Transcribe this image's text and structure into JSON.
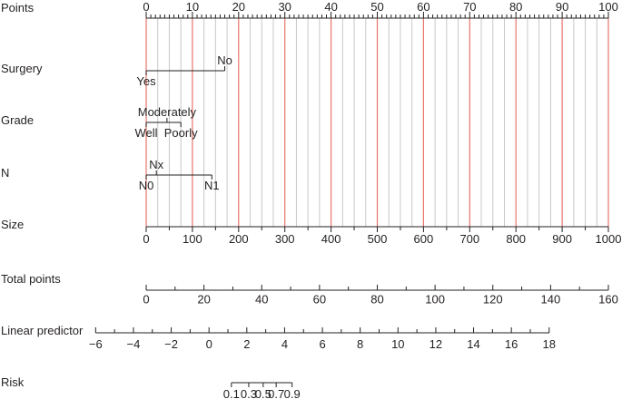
{
  "chart_data": {
    "type": "nomogram",
    "colors": {
      "major_gridline": "#e8756a",
      "minor_gridline": "#c8c8c8",
      "axis": "#231f20"
    },
    "rows": [
      {
        "key": "points",
        "label": "Points",
        "kind": "axis",
        "range": [
          0,
          100
        ],
        "labeled_ticks": [
          0,
          10,
          20,
          30,
          40,
          50,
          60,
          70,
          80,
          90,
          100
        ],
        "tick_labels": [
          "0",
          "10",
          "20",
          "30",
          "40",
          "50",
          "60",
          "70",
          "80",
          "90",
          "100"
        ],
        "minor_step": 1
      },
      {
        "key": "surgery",
        "label": "Surgery",
        "kind": "categorical",
        "range": [
          0,
          17
        ],
        "levels": [
          {
            "label": "Yes",
            "points": 0,
            "side": "below"
          },
          {
            "label": "No",
            "points": 17,
            "side": "above"
          }
        ]
      },
      {
        "key": "grade",
        "label": "Grade",
        "kind": "categorical",
        "range": [
          0,
          7.5
        ],
        "levels": [
          {
            "label": "Well",
            "points": 0,
            "side": "below"
          },
          {
            "label": "Moderately",
            "points": 4.5,
            "side": "above"
          },
          {
            "label": "Poorly",
            "points": 7.5,
            "side": "below"
          }
        ]
      },
      {
        "key": "n",
        "label": "N",
        "kind": "categorical",
        "range": [
          0,
          14.2
        ],
        "levels": [
          {
            "label": "N0",
            "points": 0,
            "side": "below"
          },
          {
            "label": "Nx",
            "points": 2.2,
            "side": "above"
          },
          {
            "label": "N1",
            "points": 14.2,
            "side": "below"
          }
        ]
      },
      {
        "key": "size",
        "label": "Size",
        "kind": "continuous",
        "values": [
          0,
          100,
          200,
          300,
          400,
          500,
          600,
          700,
          800,
          900,
          1000
        ],
        "tick_labels": [
          "0",
          "100",
          "200",
          "300",
          "400",
          "500",
          "600",
          "700",
          "800",
          "900",
          "1000"
        ],
        "points_per_unit": 0.1,
        "minor_step": 50
      },
      {
        "key": "total_points",
        "label": "Total points",
        "kind": "axis",
        "range": [
          0,
          160
        ],
        "labeled_ticks": [
          0,
          20,
          40,
          60,
          80,
          100,
          120,
          140,
          160
        ],
        "tick_labels": [
          "0",
          "20",
          "40",
          "60",
          "80",
          "100",
          "120",
          "140",
          "160"
        ],
        "minor_step": 10
      },
      {
        "key": "linear_predictor",
        "label": "Linear predictor",
        "kind": "axis",
        "total_points_at_ends": [
          -17.5,
          139.5
        ],
        "values": [
          -6,
          -4,
          -2,
          0,
          2,
          4,
          6,
          8,
          10,
          12,
          14,
          16,
          18
        ],
        "tick_labels": [
          "−6",
          "−4",
          "−2",
          "0",
          "2",
          "4",
          "6",
          "8",
          "10",
          "12",
          "14",
          "16",
          "18"
        ],
        "minor_step": 1
      },
      {
        "key": "risk",
        "label": "Risk",
        "kind": "axis",
        "total_points": [
          29.5,
          35.5,
          40.5,
          45,
          50.5
        ],
        "values": [
          0.1,
          0.3,
          0.5,
          0.7,
          0.9
        ],
        "tick_labels": [
          "0.1",
          "0.3",
          "0.5",
          "0.7",
          "0.9"
        ]
      }
    ]
  }
}
